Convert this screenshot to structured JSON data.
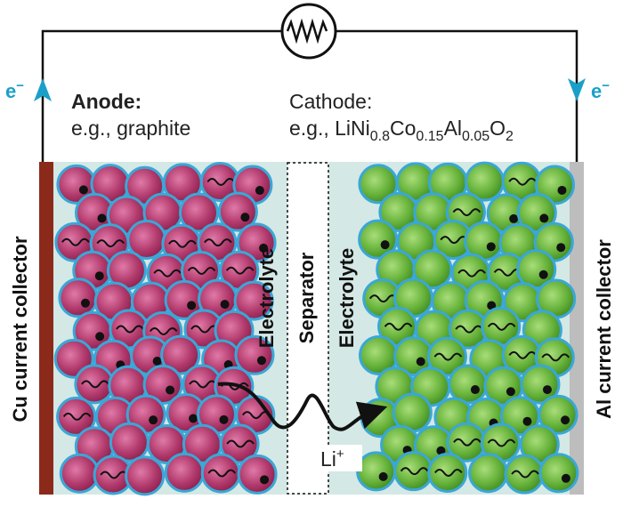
{
  "electron_left": {
    "symbol": "e",
    "charge": "−"
  },
  "electron_right": {
    "symbol": "e",
    "charge": "−"
  },
  "anode": {
    "title": "Anode:",
    "example": "e.g., graphite"
  },
  "cathode": {
    "title": "Cathode:",
    "example": [
      "e.g., LiNi",
      "0.8",
      "Co",
      "0.15",
      "Al",
      "0.05",
      "O",
      "2"
    ]
  },
  "left_collector": "Cu current collector",
  "right_collector": "Al current collector",
  "middle": {
    "left_electrolyte": "Electrolyte",
    "separator": "Separator",
    "right_electrolyte": "Electrolyte"
  },
  "ion": {
    "symbol": "Li",
    "charge": "+"
  }
}
